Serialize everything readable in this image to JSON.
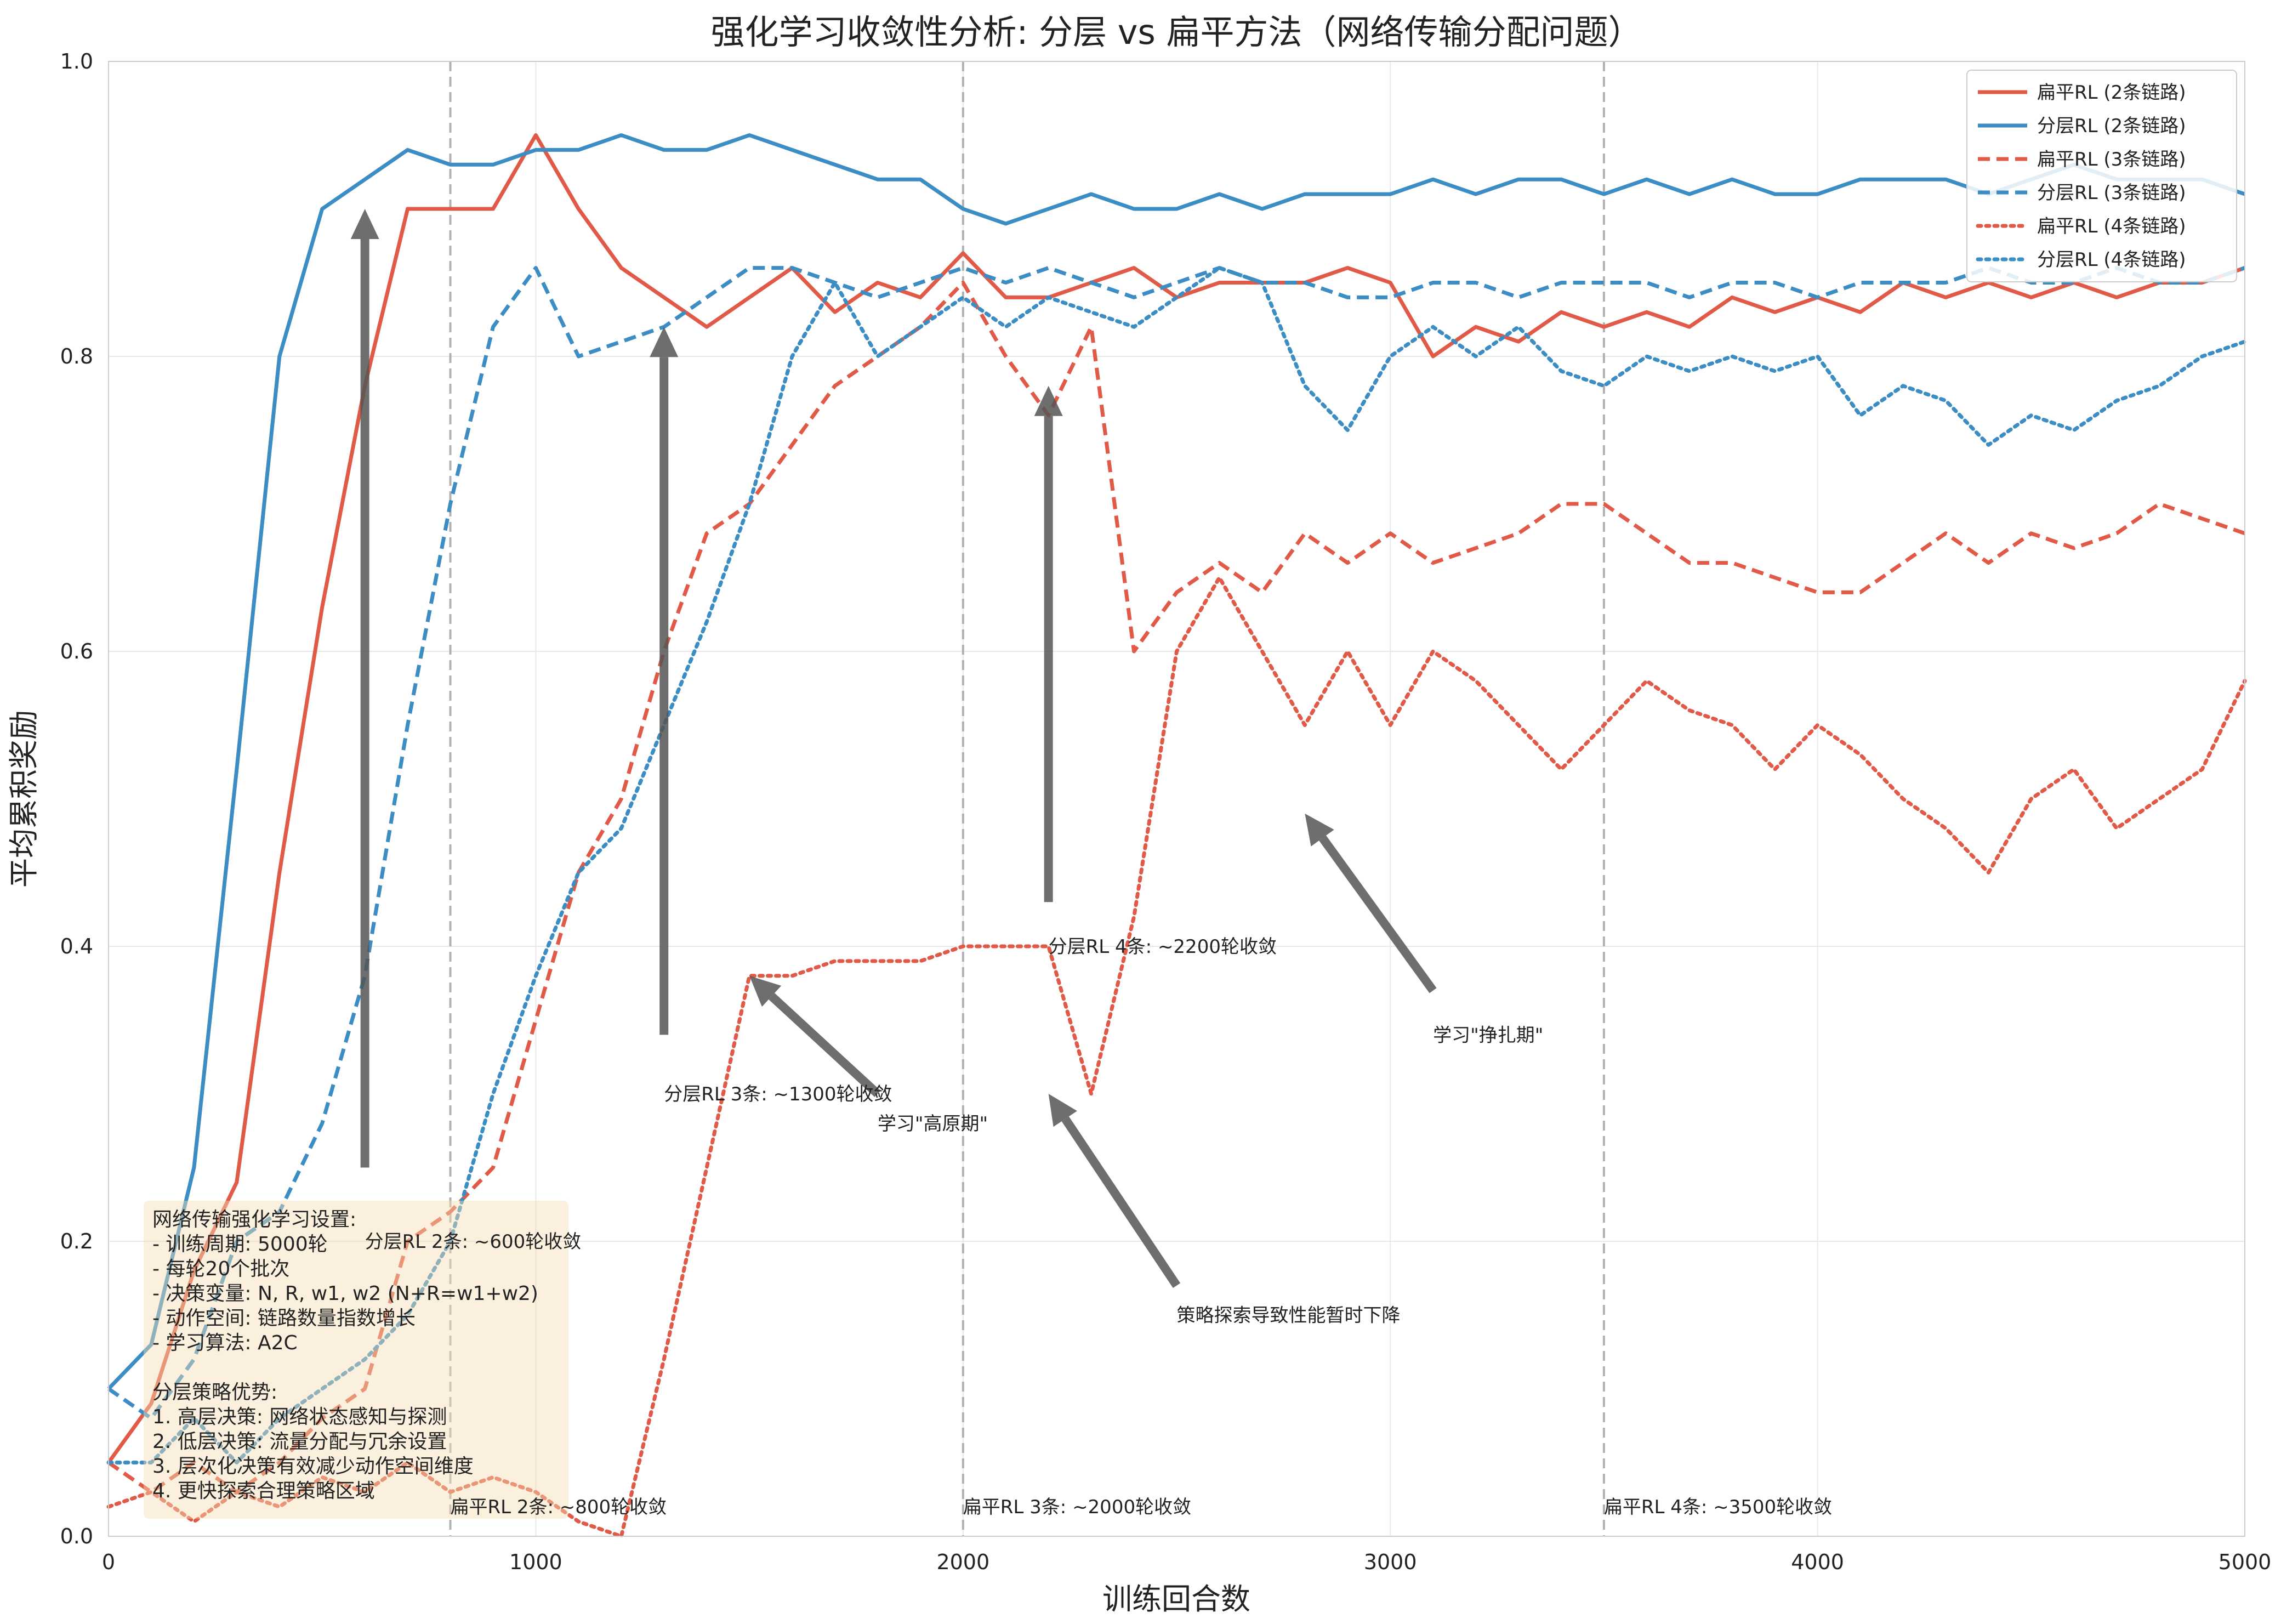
{
  "chart_data": {
    "type": "line",
    "title": "强化学习收敛性分析: 分层 vs 扁平方法（网络传输分配问题）",
    "xlabel": "训练回合数",
    "ylabel": "平均累积奖励",
    "xlim": [
      0,
      5000
    ],
    "ylim": [
      0,
      1.0
    ],
    "xticks": [
      0,
      1000,
      2000,
      3000,
      4000,
      5000
    ],
    "yticks": [
      0.0,
      0.2,
      0.4,
      0.6,
      0.8,
      1.0
    ],
    "xtick_labels": [
      "0",
      "1000",
      "2000",
      "3000",
      "4000",
      "5000"
    ],
    "ytick_labels": [
      "0.0",
      "0.2",
      "0.4",
      "0.6",
      "0.8",
      "1.0"
    ],
    "grid": true,
    "legend_position": "top-right",
    "colors": {
      "flat": "#e05a47",
      "hier": "#3c8dc3"
    },
    "x": [
      0,
      100,
      200,
      300,
      400,
      500,
      600,
      700,
      800,
      900,
      1000,
      1100,
      1200,
      1300,
      1400,
      1500,
      1600,
      1700,
      1800,
      1900,
      2000,
      2100,
      2200,
      2300,
      2400,
      2500,
      2600,
      2700,
      2800,
      2900,
      3000,
      3100,
      3200,
      3300,
      3400,
      3500,
      3600,
      3700,
      3800,
      3900,
      4000,
      4100,
      4200,
      4300,
      4400,
      4500,
      4600,
      4700,
      4800,
      4900,
      5000
    ],
    "series": [
      {
        "name": "扁平RL (2条链路)",
        "color": "#e05a47",
        "style": "solid",
        "values": [
          0.05,
          0.09,
          0.18,
          0.24,
          0.45,
          0.63,
          0.78,
          0.9,
          0.9,
          0.9,
          0.95,
          0.9,
          0.86,
          0.84,
          0.82,
          0.84,
          0.86,
          0.83,
          0.85,
          0.84,
          0.87,
          0.84,
          0.84,
          0.85,
          0.86,
          0.84,
          0.85,
          0.85,
          0.85,
          0.86,
          0.85,
          0.8,
          0.82,
          0.81,
          0.83,
          0.82,
          0.83,
          0.82,
          0.84,
          0.83,
          0.84,
          0.83,
          0.85,
          0.84,
          0.85,
          0.84,
          0.85,
          0.84,
          0.85,
          0.85,
          0.86
        ]
      },
      {
        "name": "分层RL (2条链路)",
        "color": "#3c8dc3",
        "style": "solid",
        "values": [
          0.1,
          0.13,
          0.25,
          0.52,
          0.8,
          0.9,
          0.92,
          0.94,
          0.93,
          0.93,
          0.94,
          0.94,
          0.95,
          0.94,
          0.94,
          0.95,
          0.94,
          0.93,
          0.92,
          0.92,
          0.9,
          0.89,
          0.9,
          0.91,
          0.9,
          0.9,
          0.91,
          0.9,
          0.91,
          0.91,
          0.91,
          0.92,
          0.91,
          0.92,
          0.92,
          0.91,
          0.92,
          0.91,
          0.92,
          0.91,
          0.91,
          0.92,
          0.92,
          0.92,
          0.91,
          0.92,
          0.93,
          0.92,
          0.92,
          0.92,
          0.91
        ]
      },
      {
        "name": "扁平RL (3条链路)",
        "color": "#e05a47",
        "style": "dashed",
        "values": [
          0.05,
          0.03,
          0.05,
          0.03,
          0.05,
          0.08,
          0.1,
          0.2,
          0.22,
          0.25,
          0.35,
          0.45,
          0.5,
          0.6,
          0.68,
          0.7,
          0.74,
          0.78,
          0.8,
          0.82,
          0.85,
          0.8,
          0.76,
          0.82,
          0.6,
          0.64,
          0.66,
          0.64,
          0.68,
          0.66,
          0.68,
          0.66,
          0.67,
          0.68,
          0.7,
          0.7,
          0.68,
          0.66,
          0.66,
          0.65,
          0.64,
          0.64,
          0.66,
          0.68,
          0.66,
          0.68,
          0.67,
          0.68,
          0.7,
          0.69,
          0.68
        ]
      },
      {
        "name": "分层RL (3条链路)",
        "color": "#3c8dc3",
        "style": "dashed",
        "values": [
          0.1,
          0.08,
          0.12,
          0.2,
          0.22,
          0.28,
          0.38,
          0.55,
          0.7,
          0.82,
          0.86,
          0.8,
          0.81,
          0.82,
          0.84,
          0.86,
          0.86,
          0.85,
          0.84,
          0.85,
          0.86,
          0.85,
          0.86,
          0.85,
          0.84,
          0.85,
          0.86,
          0.85,
          0.85,
          0.84,
          0.84,
          0.85,
          0.85,
          0.84,
          0.85,
          0.85,
          0.85,
          0.84,
          0.85,
          0.85,
          0.84,
          0.85,
          0.85,
          0.85,
          0.86,
          0.85,
          0.85,
          0.86,
          0.85,
          0.85,
          0.86
        ]
      },
      {
        "name": "扁平RL (4条链路)",
        "color": "#e05a47",
        "style": "dotted",
        "values": [
          0.02,
          0.03,
          0.01,
          0.03,
          0.02,
          0.04,
          0.03,
          0.05,
          0.03,
          0.04,
          0.03,
          0.01,
          0.0,
          0.12,
          0.25,
          0.38,
          0.38,
          0.39,
          0.39,
          0.39,
          0.4,
          0.4,
          0.4,
          0.3,
          0.42,
          0.6,
          0.65,
          0.6,
          0.55,
          0.6,
          0.55,
          0.6,
          0.58,
          0.55,
          0.52,
          0.55,
          0.58,
          0.56,
          0.55,
          0.52,
          0.55,
          0.53,
          0.5,
          0.48,
          0.45,
          0.5,
          0.52,
          0.48,
          0.5,
          0.52,
          0.58
        ]
      },
      {
        "name": "分层RL (4条链路)",
        "color": "#3c8dc3",
        "style": "dotted",
        "values": [
          0.05,
          0.05,
          0.08,
          0.05,
          0.08,
          0.1,
          0.12,
          0.15,
          0.2,
          0.3,
          0.38,
          0.45,
          0.48,
          0.55,
          0.62,
          0.7,
          0.8,
          0.85,
          0.8,
          0.82,
          0.84,
          0.82,
          0.84,
          0.83,
          0.82,
          0.84,
          0.86,
          0.85,
          0.78,
          0.75,
          0.8,
          0.82,
          0.8,
          0.82,
          0.79,
          0.78,
          0.8,
          0.79,
          0.8,
          0.79,
          0.8,
          0.76,
          0.78,
          0.77,
          0.74,
          0.76,
          0.75,
          0.77,
          0.78,
          0.8,
          0.81
        ]
      }
    ],
    "vlines": [
      800,
      2000,
      3500
    ],
    "annotations": [
      {
        "text": "分层RL 2条: ~600轮收敛",
        "x": 600,
        "y": 0.2,
        "arrow_from": [
          600,
          0.25
        ],
        "arrow_to": [
          600,
          0.9
        ]
      },
      {
        "text": "分层RL 3条: ~1300轮收敛",
        "x": 1300,
        "y": 0.3,
        "arrow_from": [
          1300,
          0.34
        ],
        "arrow_to": [
          1300,
          0.82
        ]
      },
      {
        "text": "分层RL 4条: ~2200轮收敛",
        "x": 2200,
        "y": 0.4,
        "arrow_from": [
          2200,
          0.43
        ],
        "arrow_to": [
          2200,
          0.78
        ]
      },
      {
        "text": "学习\"高原期\"",
        "x": 1800,
        "y": 0.28,
        "arrow_from": [
          1800,
          0.3
        ],
        "arrow_to": [
          1500,
          0.38
        ]
      },
      {
        "text": "学习\"挣扎期\"",
        "x": 3100,
        "y": 0.34,
        "arrow_from": [
          3100,
          0.37
        ],
        "arrow_to": [
          2800,
          0.49
        ]
      },
      {
        "text": "策略探索导致性能暂时下降",
        "x": 2500,
        "y": 0.15,
        "arrow_from": [
          2500,
          0.17
        ],
        "arrow_to": [
          2200,
          0.3
        ]
      },
      {
        "text": "扁平RL 3条: ~2000轮收敛",
        "x": 2000,
        "y": 0.02
      },
      {
        "text": "扁平RL 4条: ~3500轮收敛",
        "x": 3500,
        "y": 0.02
      },
      {
        "text": "扁平RL 2条: ~800轮收敛",
        "x": 800,
        "y": 0.02
      }
    ],
    "info_box": {
      "lines": [
        "网络传输强化学习设置:",
        "- 训练周期: 5000轮",
        "- 每轮20个批次",
        "- 决策变量: N, R, w1, w2 (N+R=w1+w2)",
        "- 动作空间: 链路数量指数增长",
        "- 学习算法: A2C",
        "",
        "分层策略优势:",
        "1. 高层决策: 网络状态感知与探测",
        "2. 低层决策: 流量分配与冗余设置",
        "3. 层次化决策有效减少动作空间维度",
        "4. 更快探索合理策略区域"
      ]
    }
  }
}
